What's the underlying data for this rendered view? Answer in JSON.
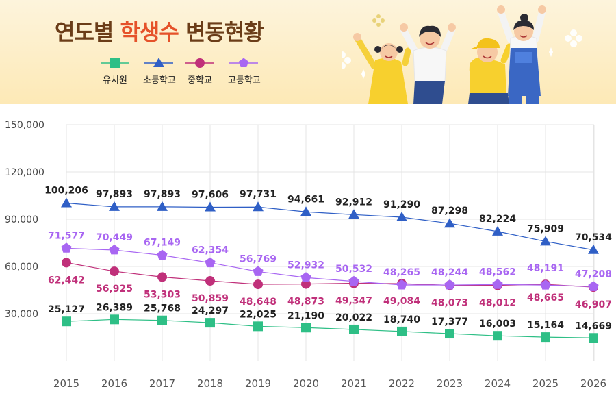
{
  "header": {
    "title_part1": "연도별 ",
    "title_part2": "학생수",
    "title_part3": " 변동현황"
  },
  "colors": {
    "kindergarten": "#2ebf86",
    "elementary": "#2f5fc6",
    "middle": "#c0307a",
    "high": "#a866f2",
    "title_accent": "#e5522a",
    "title_main": "#6b3d18"
  },
  "chart_data": {
    "type": "line",
    "x": [
      2015,
      2016,
      2017,
      2018,
      2019,
      2020,
      2021,
      2022,
      2023,
      2024,
      2025,
      2026
    ],
    "y_ticks": [
      30000,
      60000,
      90000,
      120000,
      150000
    ],
    "y_tick_labels": [
      "30,000",
      "60,000",
      "90,000",
      "120,000",
      "150,000"
    ],
    "ylim": [
      0,
      150000
    ],
    "grid": true,
    "legend_position": "top-left",
    "series": [
      {
        "name": "유치원",
        "key": "kindergarten",
        "marker": "square",
        "values": [
          25127,
          26389,
          25768,
          24297,
          22025,
          21190,
          20022,
          18740,
          17377,
          16003,
          15164,
          14669
        ],
        "labels": [
          "25,127",
          "26,389",
          "25,768",
          "24,297",
          "22,025",
          "21,190",
          "20,022",
          "18,740",
          "17,377",
          "16,003",
          "15,164",
          "14,669"
        ]
      },
      {
        "name": "초등학교",
        "key": "elementary",
        "marker": "triangle",
        "values": [
          100206,
          97893,
          97893,
          97606,
          97731,
          94661,
          92912,
          91290,
          87298,
          82224,
          75909,
          70534
        ],
        "labels": [
          "100,206",
          "97,893",
          "97,893",
          "97,606",
          "97,731",
          "94,661",
          "92,912",
          "91,290",
          "87,298",
          "82,224",
          "75,909",
          "70,534"
        ]
      },
      {
        "name": "중학교",
        "key": "middle",
        "marker": "circle",
        "values": [
          62442,
          56925,
          53303,
          50859,
          48648,
          48873,
          49347,
          49084,
          48073,
          48012,
          48665,
          46907
        ],
        "labels": [
          "62,442",
          "56,925",
          "53,303",
          "50,859",
          "48,648",
          "48,873",
          "49,347",
          "49,084",
          "48,073",
          "48,012",
          "48,665",
          "46,907"
        ]
      },
      {
        "name": "고등학교",
        "key": "high",
        "marker": "pentagon",
        "values": [
          71577,
          70449,
          67149,
          62354,
          56769,
          52932,
          50532,
          48265,
          48244,
          48562,
          48191,
          47208
        ],
        "labels": [
          "71,577",
          "70,449",
          "67,149",
          "62,354",
          "56,769",
          "52,932",
          "50,532",
          "48,265",
          "48,244",
          "48,562",
          "48,191",
          "47,208"
        ]
      }
    ]
  }
}
